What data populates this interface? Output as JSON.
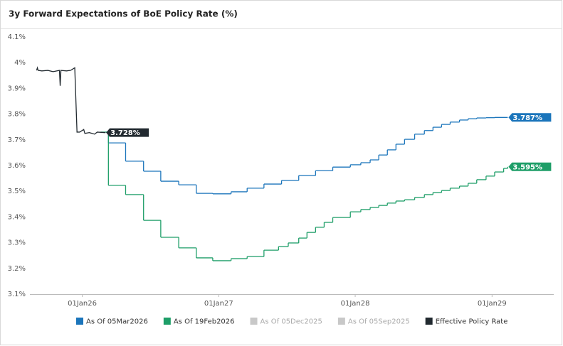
{
  "chart_data": {
    "type": "line",
    "title": "3y Forward Expectations of BoE Policy Rate (%)",
    "xlim": [
      "2025-08-14",
      "2029-06-15"
    ],
    "xticks": [
      {
        "value": "2026-01-01",
        "label": "01Jan26"
      },
      {
        "value": "2027-01-01",
        "label": "01Jan27"
      },
      {
        "value": "2028-01-01",
        "label": "01Jan28"
      },
      {
        "value": "2029-01-01",
        "label": "01Jan29"
      }
    ],
    "ylim": [
      3.1,
      4.1
    ],
    "yticks": [
      {
        "value": 3.1,
        "label": "3.1%"
      },
      {
        "value": 3.2,
        "label": "3.2%"
      },
      {
        "value": 3.3,
        "label": "3.3%"
      },
      {
        "value": 3.4,
        "label": "3.4%"
      },
      {
        "value": 3.5,
        "label": "3.5%"
      },
      {
        "value": 3.6,
        "label": "3.6%"
      },
      {
        "value": 3.7,
        "label": "3.7%"
      },
      {
        "value": 3.8,
        "label": "3.8%"
      },
      {
        "value": 3.9,
        "label": "3.9%"
      },
      {
        "value": 4,
        "label": "4%"
      },
      {
        "value": 4.1,
        "label": "4.1%"
      }
    ],
    "grid": false,
    "series": [
      {
        "name": "As Of 05Mar2026",
        "color": "#1b75bb",
        "shape": "step",
        "visible": true,
        "last_label": "3.787%",
        "x": [
          "2026-03-05",
          "2026-03-12",
          "2026-04-27",
          "2026-06-14",
          "2026-07-30",
          "2026-09-16",
          "2026-11-02",
          "2026-12-16",
          "2027-02-03",
          "2027-03-18",
          "2027-05-02",
          "2027-06-18",
          "2027-08-03",
          "2027-09-17",
          "2027-11-02",
          "2027-12-19",
          "2028-01-16",
          "2028-02-10",
          "2028-03-04",
          "2028-03-27",
          "2028-04-19",
          "2028-05-12",
          "2028-06-08",
          "2028-07-04",
          "2028-07-27",
          "2028-08-19",
          "2028-09-11",
          "2028-10-06",
          "2028-10-29",
          "2028-11-21",
          "2028-12-16",
          "2029-01-08",
          "2029-02-12"
        ],
        "values": [
          3.73,
          3.688,
          3.617,
          3.578,
          3.539,
          3.525,
          3.492,
          3.49,
          3.498,
          3.512,
          3.528,
          3.542,
          3.561,
          3.58,
          3.594,
          3.603,
          3.611,
          3.622,
          3.641,
          3.661,
          3.683,
          3.702,
          3.722,
          3.736,
          3.749,
          3.76,
          3.769,
          3.777,
          3.782,
          3.785,
          3.786,
          3.787,
          3.787
        ]
      },
      {
        "name": "As Of 19Feb2026",
        "color": "#1e9e68",
        "shape": "step",
        "visible": true,
        "last_label": "3.595%",
        "x": [
          "2026-02-19",
          "2026-03-12",
          "2026-04-27",
          "2026-06-14",
          "2026-07-30",
          "2026-09-16",
          "2026-11-02",
          "2026-12-16",
          "2027-02-03",
          "2027-03-18",
          "2027-05-02",
          "2027-06-10",
          "2027-07-06",
          "2027-08-03",
          "2027-08-25",
          "2027-09-17",
          "2027-10-10",
          "2027-11-02",
          "2027-12-19",
          "2028-01-16",
          "2028-02-10",
          "2028-03-04",
          "2028-03-27",
          "2028-04-19",
          "2028-05-12",
          "2028-06-08",
          "2028-07-04",
          "2028-07-27",
          "2028-08-19",
          "2028-09-11",
          "2028-10-06",
          "2028-10-29",
          "2028-11-21",
          "2028-12-16",
          "2029-01-08",
          "2029-02-01",
          "2029-02-12"
        ],
        "values": [
          3.73,
          3.523,
          3.487,
          3.387,
          3.321,
          3.28,
          3.241,
          3.23,
          3.238,
          3.246,
          3.271,
          3.285,
          3.299,
          3.318,
          3.34,
          3.36,
          3.379,
          3.398,
          3.42,
          3.429,
          3.437,
          3.445,
          3.454,
          3.462,
          3.467,
          3.476,
          3.487,
          3.495,
          3.503,
          3.512,
          3.52,
          3.531,
          3.545,
          3.559,
          3.575,
          3.589,
          3.595
        ]
      },
      {
        "name": "As Of 05Dec2025",
        "color": "#c8c8c8",
        "visible": false
      },
      {
        "name": "As Of 05Sep2025",
        "color": "#c8c8c8",
        "visible": false
      },
      {
        "name": "Effective Policy Rate",
        "color": "#222a30",
        "shape": "linear",
        "visible": true,
        "last_label": "3.728%",
        "x": [
          "2025-09-01",
          "2025-09-03",
          "2025-09-05",
          "2025-09-15",
          "2025-10-01",
          "2025-10-15",
          "2025-11-01",
          "2025-11-03",
          "2025-11-05",
          "2025-11-20",
          "2025-12-01",
          "2025-12-12",
          "2025-12-18",
          "2025-12-25",
          "2026-01-05",
          "2026-01-08",
          "2026-01-20",
          "2026-02-03",
          "2026-02-10",
          "2026-03-04"
        ],
        "values": [
          3.97,
          3.98,
          3.97,
          3.968,
          3.97,
          3.965,
          3.97,
          3.91,
          3.97,
          3.968,
          3.97,
          3.98,
          3.73,
          3.73,
          3.74,
          3.725,
          3.728,
          3.722,
          3.73,
          3.728
        ]
      }
    ]
  }
}
